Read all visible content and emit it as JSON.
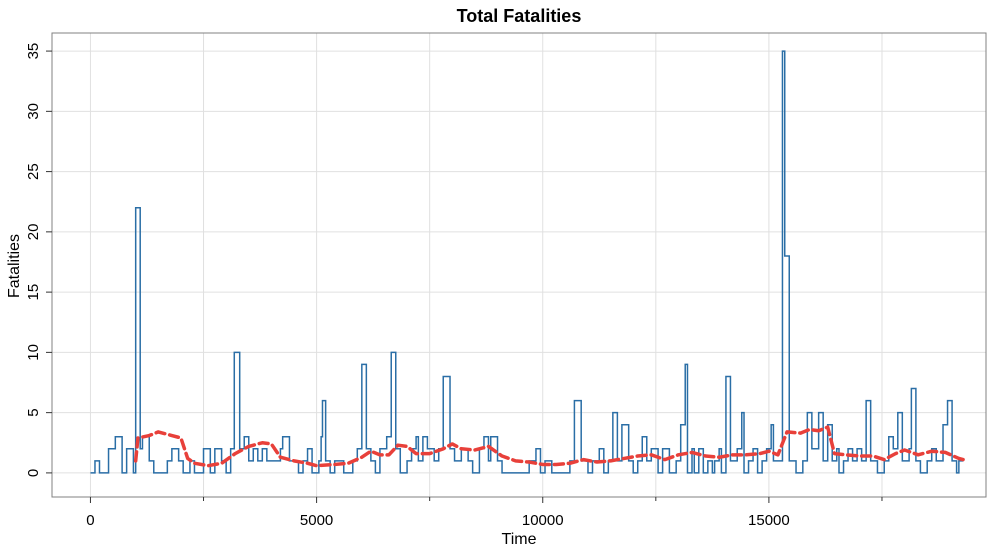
{
  "chart_data": {
    "type": "line",
    "title": "Total Fatalities",
    "xlabel": "Time",
    "ylabel": "Fatalities",
    "xlim": [
      -850,
      19800
    ],
    "ylim": [
      -2,
      36.5
    ],
    "grid": true,
    "x_ticks": [
      0,
      5000,
      10000,
      15000
    ],
    "y_ticks": [
      0,
      5,
      10,
      15,
      20,
      25,
      30,
      35
    ],
    "x_minor_ticks": [
      2500,
      7500,
      12500,
      17500
    ],
    "colors": {
      "step": "#2a6ea6",
      "smooth": "#e8403a",
      "grid": "#e0e0e0",
      "frame": "#808080"
    },
    "series": [
      {
        "style": "step",
        "points": [
          [
            0,
            0
          ],
          [
            100,
            1
          ],
          [
            200,
            0
          ],
          [
            400,
            2
          ],
          [
            500,
            2
          ],
          [
            550,
            3
          ],
          [
            700,
            0
          ],
          [
            800,
            2
          ],
          [
            950,
            0
          ],
          [
            1000,
            22
          ],
          [
            1100,
            2
          ],
          [
            1150,
            3
          ],
          [
            1300,
            1
          ],
          [
            1400,
            0
          ],
          [
            1600,
            0
          ],
          [
            1700,
            1
          ],
          [
            1800,
            2
          ],
          [
            1950,
            1
          ],
          [
            2050,
            0
          ],
          [
            2200,
            1
          ],
          [
            2300,
            0
          ],
          [
            2500,
            2
          ],
          [
            2650,
            0
          ],
          [
            2750,
            2
          ],
          [
            2900,
            1
          ],
          [
            3000,
            0
          ],
          [
            3100,
            2
          ],
          [
            3180,
            10
          ],
          [
            3300,
            2
          ],
          [
            3400,
            3
          ],
          [
            3500,
            1
          ],
          [
            3600,
            2
          ],
          [
            3700,
            1
          ],
          [
            3800,
            2
          ],
          [
            3900,
            1
          ],
          [
            4100,
            1
          ],
          [
            4200,
            2
          ],
          [
            4250,
            3
          ],
          [
            4400,
            1
          ],
          [
            4600,
            0
          ],
          [
            4700,
            1
          ],
          [
            4800,
            2
          ],
          [
            4900,
            0
          ],
          [
            5050,
            1
          ],
          [
            5100,
            3
          ],
          [
            5130,
            6
          ],
          [
            5200,
            1
          ],
          [
            5300,
            0
          ],
          [
            5400,
            1
          ],
          [
            5600,
            0
          ],
          [
            5800,
            1
          ],
          [
            5900,
            2
          ],
          [
            6000,
            9
          ],
          [
            6100,
            2
          ],
          [
            6200,
            1
          ],
          [
            6300,
            0
          ],
          [
            6400,
            2
          ],
          [
            6550,
            3
          ],
          [
            6650,
            10
          ],
          [
            6750,
            2
          ],
          [
            6850,
            0
          ],
          [
            7000,
            1
          ],
          [
            7100,
            2
          ],
          [
            7200,
            3
          ],
          [
            7250,
            1
          ],
          [
            7350,
            3
          ],
          [
            7450,
            2
          ],
          [
            7600,
            1
          ],
          [
            7700,
            2
          ],
          [
            7800,
            8
          ],
          [
            7950,
            2
          ],
          [
            8050,
            1
          ],
          [
            8200,
            2
          ],
          [
            8350,
            1
          ],
          [
            8450,
            0
          ],
          [
            8600,
            2
          ],
          [
            8700,
            3
          ],
          [
            8800,
            1
          ],
          [
            8850,
            3
          ],
          [
            9000,
            1
          ],
          [
            9100,
            0
          ],
          [
            9700,
            1
          ],
          [
            9850,
            2
          ],
          [
            9950,
            0
          ],
          [
            10050,
            1
          ],
          [
            10200,
            0
          ],
          [
            10600,
            1
          ],
          [
            10700,
            6
          ],
          [
            10850,
            1
          ],
          [
            11000,
            0
          ],
          [
            11100,
            1
          ],
          [
            11250,
            2
          ],
          [
            11350,
            0
          ],
          [
            11450,
            1
          ],
          [
            11550,
            5
          ],
          [
            11650,
            1
          ],
          [
            11750,
            4
          ],
          [
            11900,
            1
          ],
          [
            12000,
            0
          ],
          [
            12100,
            1
          ],
          [
            12200,
            3
          ],
          [
            12300,
            1
          ],
          [
            12400,
            2
          ],
          [
            12550,
            0
          ],
          [
            12650,
            2
          ],
          [
            12800,
            0
          ],
          [
            12950,
            1
          ],
          [
            13050,
            4
          ],
          [
            13150,
            9
          ],
          [
            13200,
            0
          ],
          [
            13300,
            2
          ],
          [
            13350,
            0
          ],
          [
            13450,
            2
          ],
          [
            13550,
            0
          ],
          [
            13650,
            1
          ],
          [
            13750,
            0
          ],
          [
            13800,
            1
          ],
          [
            13900,
            2
          ],
          [
            13950,
            0
          ],
          [
            14050,
            8
          ],
          [
            14150,
            1
          ],
          [
            14300,
            2
          ],
          [
            14400,
            5
          ],
          [
            14450,
            0
          ],
          [
            14550,
            1
          ],
          [
            14650,
            2
          ],
          [
            14750,
            0
          ],
          [
            14850,
            1
          ],
          [
            14950,
            2
          ],
          [
            15050,
            4
          ],
          [
            15100,
            1
          ],
          [
            15200,
            1
          ],
          [
            15300,
            35
          ],
          [
            15350,
            18
          ],
          [
            15450,
            1
          ],
          [
            15600,
            0
          ],
          [
            15750,
            1
          ],
          [
            15850,
            5
          ],
          [
            15950,
            2
          ],
          [
            16100,
            5
          ],
          [
            16200,
            1
          ],
          [
            16300,
            4
          ],
          [
            16400,
            1
          ],
          [
            16500,
            2
          ],
          [
            16550,
            0
          ],
          [
            16650,
            1
          ],
          [
            16750,
            2
          ],
          [
            16850,
            1
          ],
          [
            16950,
            2
          ],
          [
            17050,
            1
          ],
          [
            17150,
            6
          ],
          [
            17250,
            1
          ],
          [
            17400,
            0
          ],
          [
            17550,
            1
          ],
          [
            17650,
            3
          ],
          [
            17750,
            2
          ],
          [
            17850,
            5
          ],
          [
            17950,
            1
          ],
          [
            18100,
            2
          ],
          [
            18150,
            7
          ],
          [
            18250,
            1
          ],
          [
            18350,
            0
          ],
          [
            18500,
            1
          ],
          [
            18600,
            2
          ],
          [
            18700,
            1
          ],
          [
            18850,
            4
          ],
          [
            18950,
            6
          ],
          [
            19050,
            1
          ],
          [
            19150,
            0
          ],
          [
            19200,
            1
          ],
          [
            19300,
            1
          ]
        ]
      },
      {
        "style": "dashed-smooth",
        "points": [
          [
            1000,
            1.0
          ],
          [
            1050,
            2.9
          ],
          [
            1300,
            3.1
          ],
          [
            1500,
            3.4
          ],
          [
            1800,
            3.1
          ],
          [
            2000,
            2.9
          ],
          [
            2150,
            1.2
          ],
          [
            2300,
            0.8
          ],
          [
            2600,
            0.6
          ],
          [
            2900,
            0.8
          ],
          [
            3200,
            1.6
          ],
          [
            3500,
            2.2
          ],
          [
            3800,
            2.5
          ],
          [
            4000,
            2.4
          ],
          [
            4200,
            1.3
          ],
          [
            4500,
            1.0
          ],
          [
            4800,
            0.8
          ],
          [
            5000,
            0.6
          ],
          [
            5400,
            0.7
          ],
          [
            5700,
            0.8
          ],
          [
            6000,
            1.3
          ],
          [
            6200,
            1.8
          ],
          [
            6400,
            1.5
          ],
          [
            6600,
            1.5
          ],
          [
            6800,
            2.3
          ],
          [
            7000,
            2.2
          ],
          [
            7200,
            1.6
          ],
          [
            7500,
            1.6
          ],
          [
            7800,
            2.0
          ],
          [
            8000,
            2.4
          ],
          [
            8200,
            2.0
          ],
          [
            8500,
            1.9
          ],
          [
            8800,
            2.2
          ],
          [
            9100,
            1.4
          ],
          [
            9400,
            1.0
          ],
          [
            9700,
            0.9
          ],
          [
            10000,
            0.7
          ],
          [
            10300,
            0.7
          ],
          [
            10600,
            0.8
          ],
          [
            10900,
            1.1
          ],
          [
            11200,
            0.9
          ],
          [
            11500,
            1.0
          ],
          [
            11800,
            1.2
          ],
          [
            12100,
            1.4
          ],
          [
            12400,
            1.5
          ],
          [
            12700,
            1.1
          ],
          [
            13000,
            1.5
          ],
          [
            13300,
            1.7
          ],
          [
            13600,
            1.4
          ],
          [
            13900,
            1.3
          ],
          [
            14200,
            1.5
          ],
          [
            14500,
            1.5
          ],
          [
            14800,
            1.6
          ],
          [
            15000,
            1.8
          ],
          [
            15200,
            1.5
          ],
          [
            15400,
            3.4
          ],
          [
            15700,
            3.3
          ],
          [
            15900,
            3.6
          ],
          [
            16100,
            3.5
          ],
          [
            16300,
            3.8
          ],
          [
            16450,
            1.6
          ],
          [
            16700,
            1.5
          ],
          [
            17000,
            1.4
          ],
          [
            17300,
            1.4
          ],
          [
            17550,
            1.1
          ],
          [
            17800,
            1.6
          ],
          [
            18000,
            1.9
          ],
          [
            18300,
            1.5
          ],
          [
            18600,
            1.8
          ],
          [
            18900,
            1.7
          ],
          [
            19200,
            1.2
          ],
          [
            19300,
            1.1
          ]
        ]
      }
    ]
  }
}
